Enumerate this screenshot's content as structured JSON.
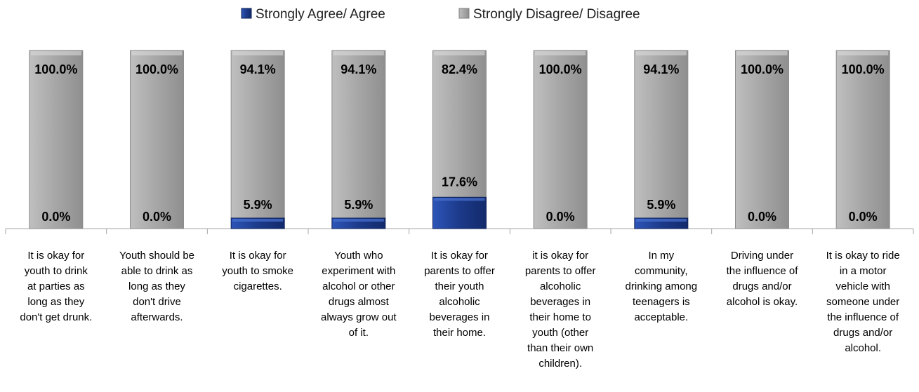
{
  "chart_data": {
    "type": "bar",
    "stacked": true,
    "percent_stacked": true,
    "legend_position": "top",
    "grid": false,
    "categories": [
      [
        "It is okay for",
        "youth to drink",
        "at parties as",
        "long as they",
        "don't get drunk."
      ],
      [
        "Youth should be",
        "able to drink as",
        "long as they",
        "don't drive",
        "afterwards."
      ],
      [
        "It is okay for",
        "youth to smoke",
        "cigarettes."
      ],
      [
        "Youth who",
        "experiment with",
        "alcohol or other",
        "drugs almost",
        "always grow out",
        "of it."
      ],
      [
        "It is okay for",
        "parents to offer",
        "their youth",
        "alcoholic",
        "beverages in",
        "their home."
      ],
      [
        "it is okay for",
        "parents to offer",
        "alcoholic",
        "beverages in",
        "their home to",
        "youth (other",
        "than their own",
        "children)."
      ],
      [
        "In my",
        "community,",
        "drinking among",
        "teenagers is",
        "acceptable."
      ],
      [
        "Driving under",
        "the influence of",
        "drugs and/or",
        "alcohol is okay."
      ],
      [
        "It is okay to ride",
        "in a motor",
        "vehicle with",
        "someone under",
        "the influence of",
        "drugs and/or",
        "alcohol."
      ]
    ],
    "series": [
      {
        "name": "Strongly Agree/ Agree",
        "color": "#1c3a8a",
        "values": [
          0.0,
          0.0,
          5.9,
          5.9,
          17.6,
          0.0,
          5.9,
          0.0,
          0.0
        ],
        "labels": [
          "0.0%",
          "0.0%",
          "5.9%",
          "5.9%",
          "17.6%",
          "0.0%",
          "5.9%",
          "0.0%",
          "0.0%"
        ]
      },
      {
        "name": "Strongly Disagree/ Disagree",
        "color": "#a6a6a6",
        "values": [
          100.0,
          100.0,
          94.1,
          94.1,
          82.4,
          100.0,
          94.1,
          100.0,
          100.0
        ],
        "labels": [
          "100.0%",
          "100.0%",
          "94.1%",
          "94.1%",
          "82.4%",
          "100.0%",
          "94.1%",
          "100.0%",
          "100.0%"
        ]
      }
    ],
    "ylim": [
      0,
      100
    ]
  }
}
